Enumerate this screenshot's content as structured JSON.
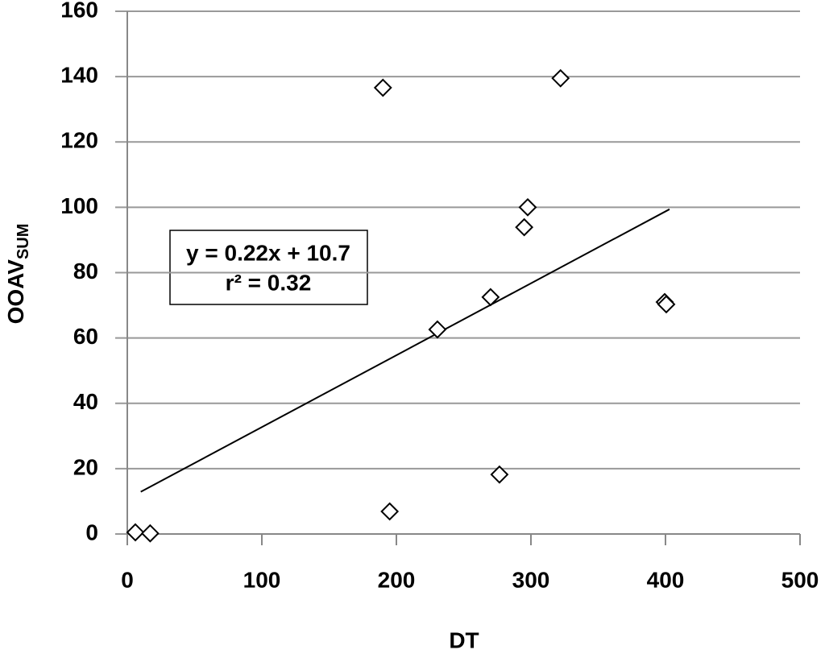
{
  "chart_data": {
    "type": "scatter",
    "x_label": "DT",
    "y_label": "OOAV",
    "y_label_sub": "SUM",
    "annotation": [
      "y = 0.22x + 10.7",
      "r² = 0.32"
    ],
    "series": [
      {
        "color": "#000000",
        "marker": "diamond",
        "x": [
          6,
          17,
          190,
          195,
          230.5,
          270,
          276.6,
          295,
          297.6,
          322,
          399.4,
          400.6
        ],
        "values": [
          0.5,
          0.2,
          136.6,
          6.9,
          62.6,
          72.5,
          18.2,
          93.9,
          100,
          139.5,
          71,
          70.3
        ]
      }
    ],
    "trendline": {
      "color": "#000000",
      "x": [
        10,
        403
      ],
      "values": [
        12.9,
        99.4
      ]
    },
    "xlim": [
      0,
      500
    ],
    "ylim": [
      0,
      160
    ],
    "xticks": [
      0,
      100,
      200,
      300,
      400,
      500
    ],
    "yticks": [
      0,
      20,
      40,
      60,
      80,
      100,
      120,
      140,
      160
    ],
    "grid": true
  }
}
